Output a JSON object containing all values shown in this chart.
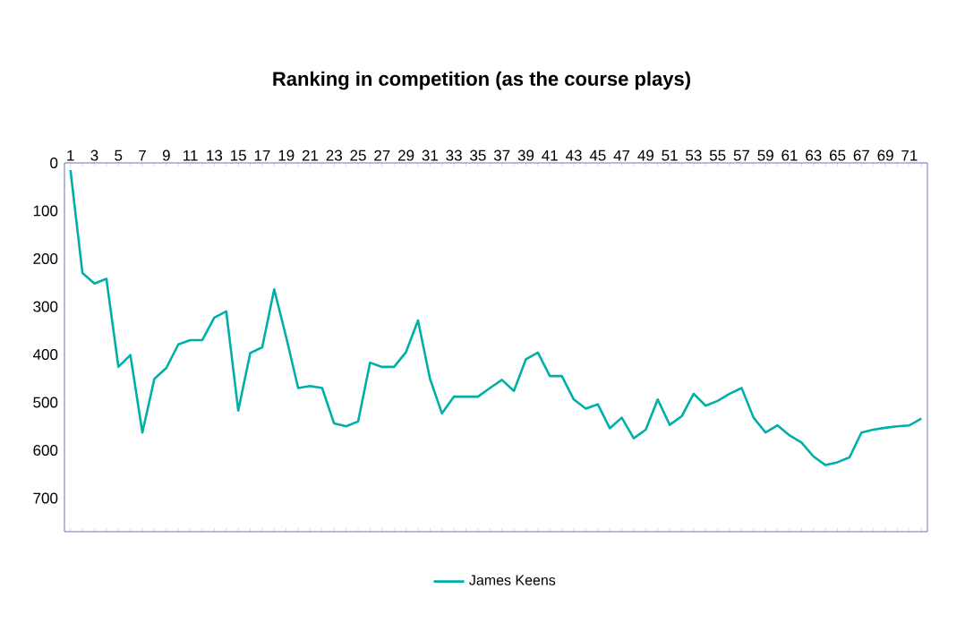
{
  "chart_data": {
    "type": "line",
    "title": "Ranking in competition (as the course plays)",
    "categories": [
      "1",
      null,
      "3",
      null,
      "5",
      null,
      "7",
      null,
      "9",
      null,
      "11",
      null,
      "13",
      null,
      "15",
      null,
      "17",
      null,
      "19",
      null,
      "21",
      null,
      "23",
      null,
      "25",
      null,
      "27",
      null,
      "29",
      null,
      "31",
      null,
      "33",
      null,
      "35",
      null,
      "37",
      null,
      "39",
      null,
      "41",
      null,
      "43",
      null,
      "45",
      null,
      "47",
      null,
      "49",
      null,
      "51",
      null,
      "53",
      null,
      "55",
      null,
      "57",
      null,
      "59",
      null,
      "61",
      null,
      "63",
      null,
      "65",
      null,
      "67",
      null,
      "69",
      null,
      "71",
      null
    ],
    "series": [
      {
        "name": "James Keens",
        "color": "#00b0a8",
        "values": [
          15,
          230,
          252,
          242,
          426,
          401,
          563,
          451,
          428,
          379,
          370,
          370,
          323,
          310,
          517,
          397,
          385,
          264,
          364,
          470,
          466,
          470,
          544,
          550,
          540,
          417,
          426,
          426,
          395,
          329,
          451,
          523,
          488,
          488,
          488,
          470,
          453,
          476,
          410,
          396,
          445,
          445,
          494,
          513,
          504,
          554,
          532,
          575,
          557,
          494,
          547,
          529,
          482,
          507,
          497,
          482,
          470,
          532,
          563,
          548,
          569,
          584,
          613,
          631,
          625,
          615,
          563,
          557,
          553,
          550,
          548,
          534
        ]
      }
    ],
    "ylim": [
      770,
      0
    ],
    "yticks": [
      0,
      100,
      200,
      300,
      400,
      500,
      600,
      700
    ],
    "grid": false,
    "legend": "bottom",
    "marker": "none",
    "line_style": "solid"
  }
}
